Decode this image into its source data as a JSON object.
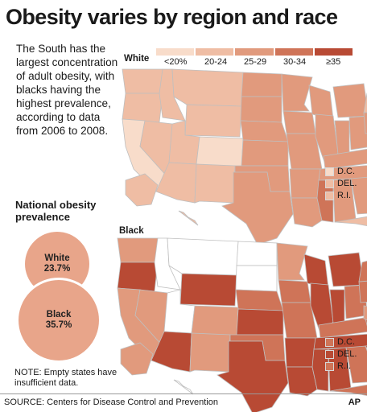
{
  "title": "Obesity varies by region and race",
  "blurb": "The South has the largest concentration of adult obesity, with blacks having the highest prevalence, according to data from 2006 to 2008.",
  "national": {
    "heading": "National obesity prevalence",
    "white_label": "White",
    "white_value": "23.7%",
    "black_label": "Black",
    "black_value": "35.7%"
  },
  "legend": {
    "bins": [
      "<20%",
      "20-24",
      "25-29",
      "30-34",
      "≥35"
    ],
    "colors": [
      "#f8dcca",
      "#efbda4",
      "#e19a7d",
      "#cf7458",
      "#b84a34"
    ]
  },
  "maps": {
    "white": {
      "label": "White",
      "small_states": [
        {
          "name": "D.C.",
          "bin": 0
        },
        {
          "name": "DEL.",
          "bin": 1
        },
        {
          "name": "R.I.",
          "bin": 1
        }
      ]
    },
    "black": {
      "label": "Black",
      "small_states": [
        {
          "name": "D.C.",
          "bin": 3
        },
        {
          "name": "DEL.",
          "bin": 4
        },
        {
          "name": "R.I.",
          "bin": 3
        }
      ]
    }
  },
  "note": "NOTE: Empty states have insufficient data.",
  "source": "SOURCE: Centers for Disease Control and Prevention",
  "credit": "AP"
}
